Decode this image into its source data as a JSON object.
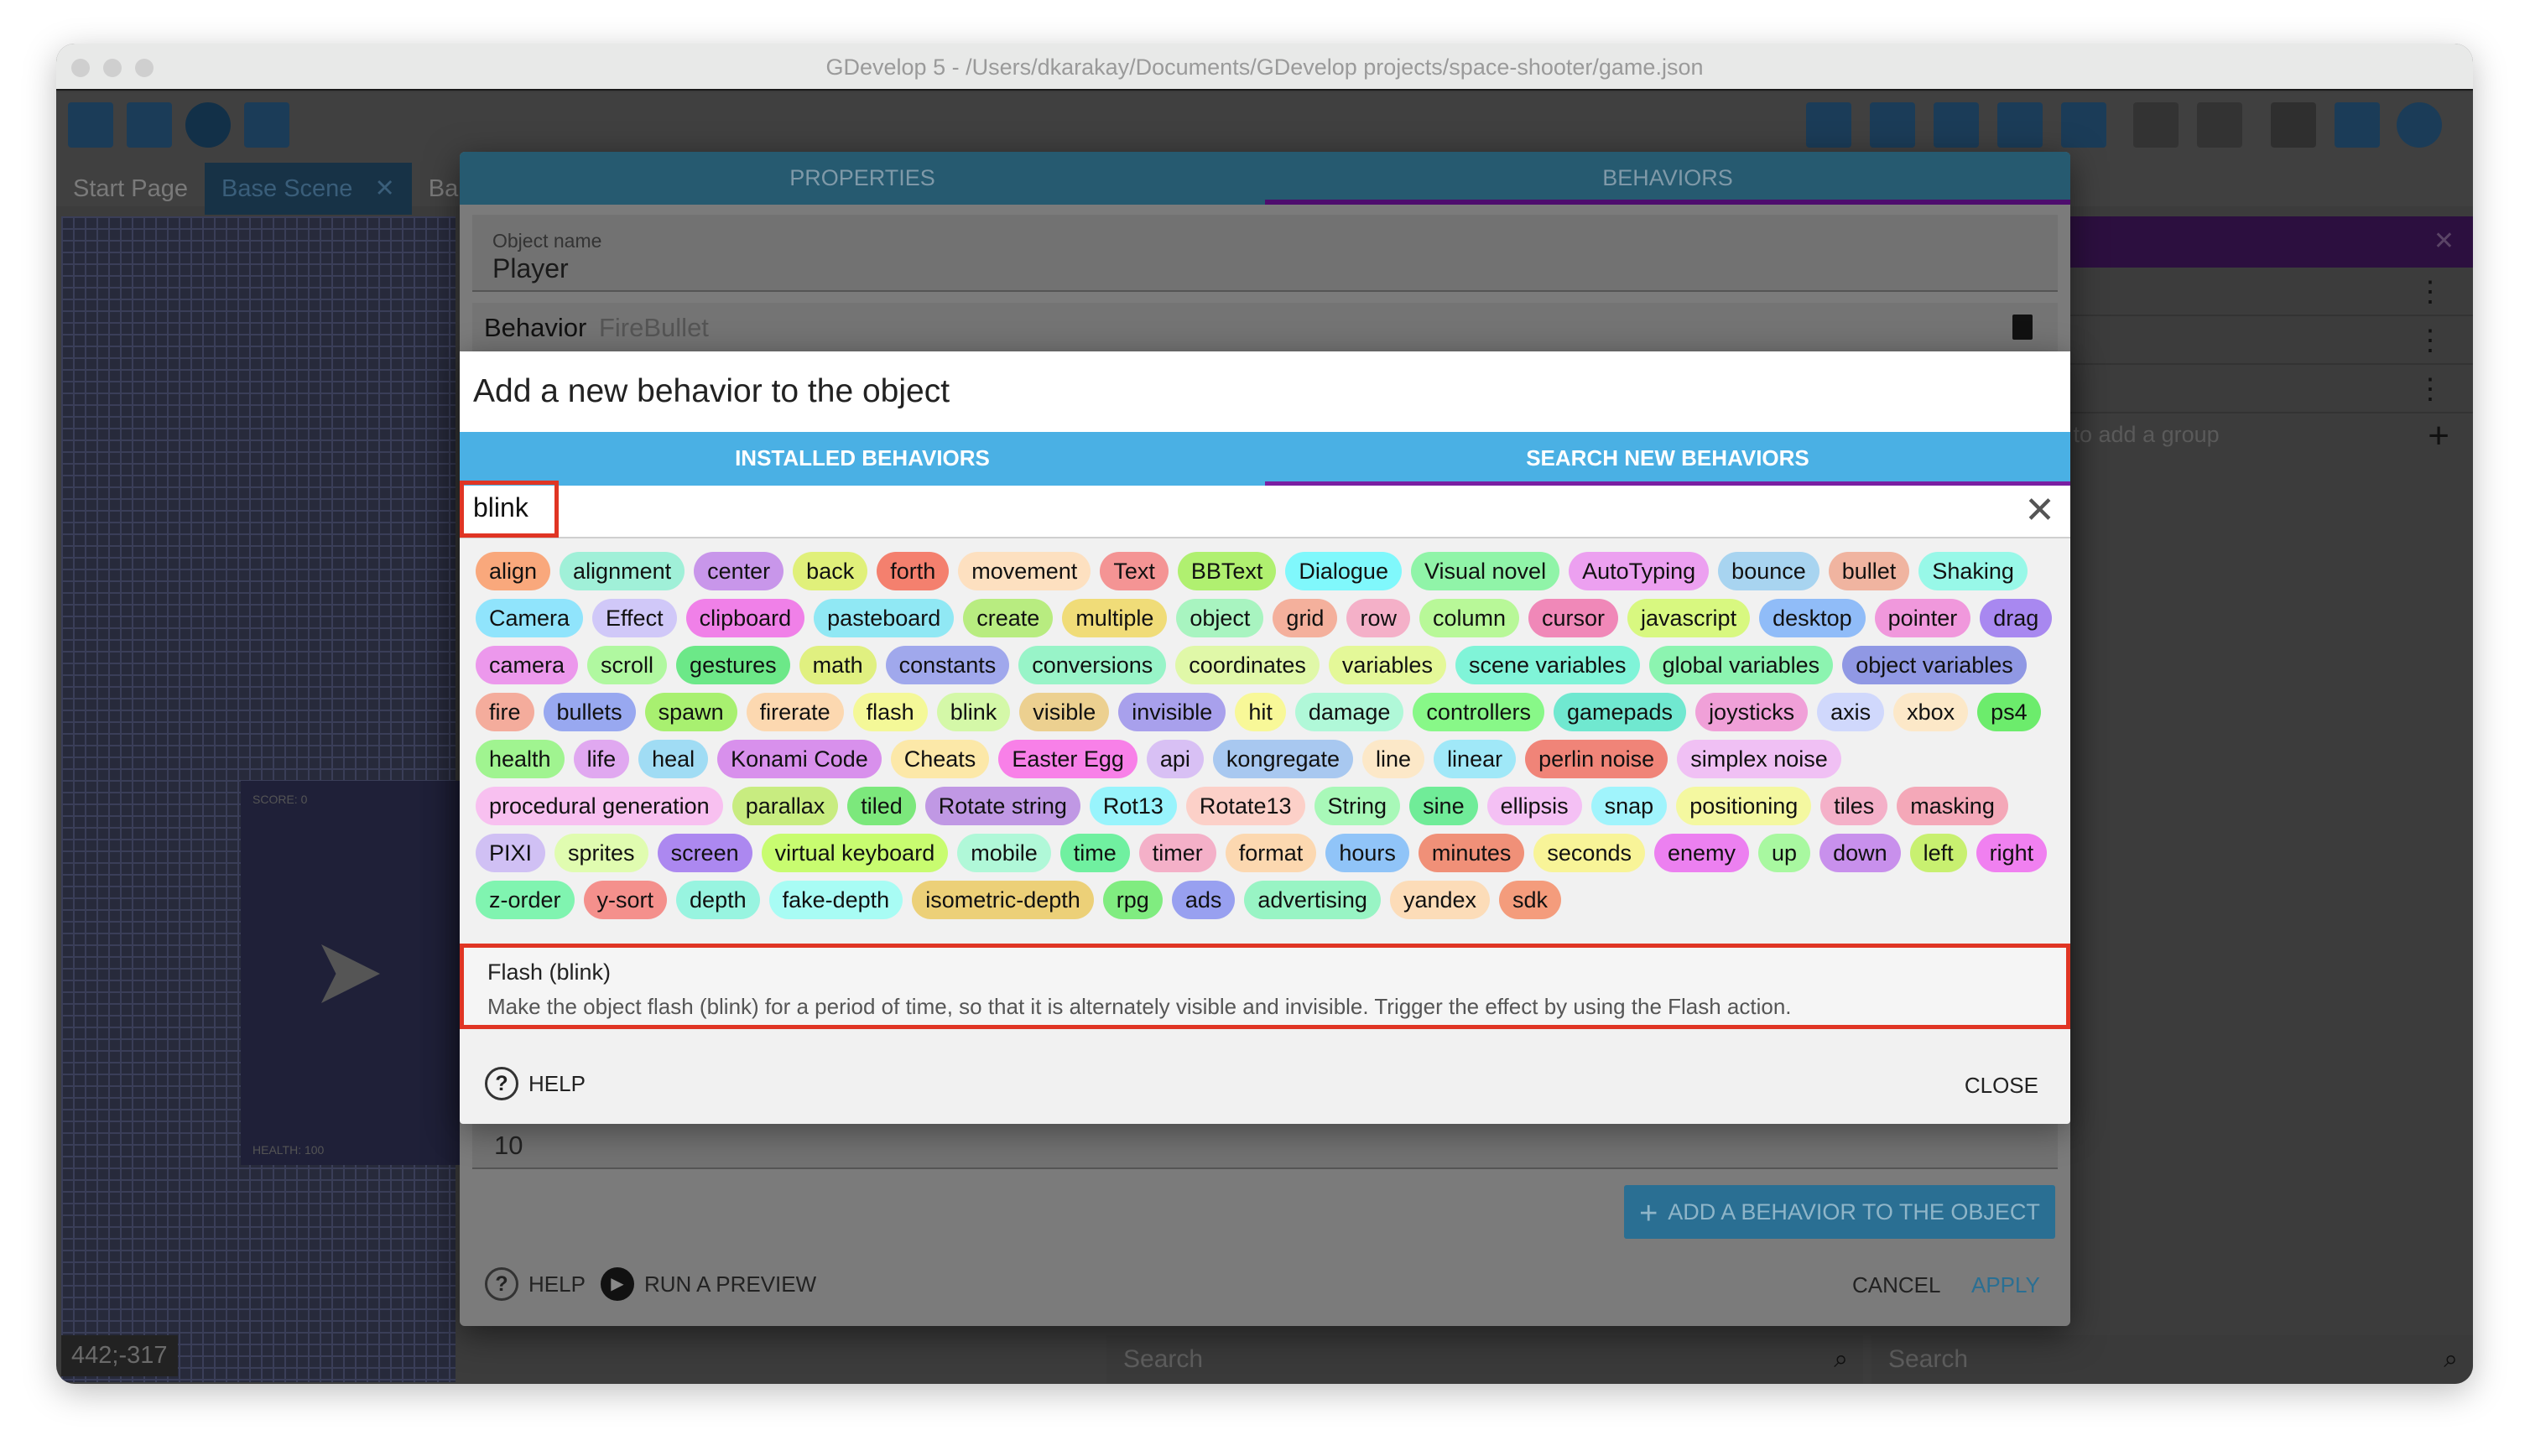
{
  "window": {
    "title": "GDevelop 5 - /Users/dkarakay/Documents/GDevelop projects/space-shooter/game.json"
  },
  "editor": {
    "tabs": [
      "Start Page",
      "Base Scene",
      "Ba"
    ],
    "tab_close": "✕",
    "status": "442;-317",
    "right_panel_hint": "ck to add a group",
    "right_panel_add": "+",
    "right_panel_close": "✕",
    "kebab": "⋮",
    "search_placeholder_1": "Search",
    "search_placeholder_2": "Search",
    "preview_score": "SCORE: 0",
    "preview_health": "HEALTH: 100"
  },
  "outer_dialog": {
    "tabs": [
      "PROPERTIES",
      "BEHAVIORS"
    ],
    "active_tab": 1,
    "object_name_label": "Object name",
    "object_name": "Player",
    "behavior_label": "Behavior",
    "behavior_name": "FireBullet",
    "value_field": "10",
    "add_behavior": "ADD A BEHAVIOR TO THE OBJECT",
    "help": "HELP",
    "run_preview": "RUN A PREVIEW",
    "cancel": "CANCEL",
    "apply": "APPLY"
  },
  "inner_dialog": {
    "title": "Add a new behavior to the object",
    "tabs": [
      "INSTALLED BEHAVIORS",
      "SEARCH NEW BEHAVIORS"
    ],
    "active_tab": 1,
    "search_value": "blink",
    "tags": [
      [
        "align",
        "#f9a87c"
      ],
      [
        "alignment",
        "#a0f0d8"
      ],
      [
        "center",
        "#c896ea"
      ],
      [
        "back",
        "#e0f07a"
      ],
      [
        "forth",
        "#f4806e"
      ],
      [
        "movement",
        "#fde0c0"
      ],
      [
        "Text",
        "#f49494"
      ],
      [
        "BBText",
        "#b0f070"
      ],
      [
        "Dialogue",
        "#80f8fc"
      ],
      [
        "Visual novel",
        "#90f4a8"
      ],
      [
        "AutoTyping",
        "#eca0f0"
      ],
      [
        "bounce",
        "#a8d4f0"
      ],
      [
        "bullet",
        "#f0b4a0"
      ],
      [
        "Shaking",
        "#98f8e8"
      ],
      [
        "Camera",
        "#90e4fc"
      ],
      [
        "Effect",
        "#d0c8f8"
      ],
      [
        "clipboard",
        "#f080e8"
      ],
      [
        "pasteboard",
        "#90e8f4"
      ],
      [
        "create",
        "#b8ec80"
      ],
      [
        "multiple",
        "#f0dc78"
      ],
      [
        "object",
        "#a8f4c0"
      ],
      [
        "grid",
        "#f4b09c"
      ],
      [
        "row",
        "#f4b0c8"
      ],
      [
        "column",
        "#b8f898"
      ],
      [
        "cursor",
        "#f088b8"
      ],
      [
        "javascript",
        "#d8f880"
      ],
      [
        "desktop",
        "#90bcf8"
      ],
      [
        "pointer",
        "#f098dc"
      ],
      [
        "drag",
        "#a888f0"
      ],
      [
        "camera",
        "#ec98ec"
      ],
      [
        "scroll",
        "#b0f8a0"
      ],
      [
        "gestures",
        "#6ce888"
      ],
      [
        "math",
        "#e0f080"
      ],
      [
        "constants",
        "#a0a8ec"
      ],
      [
        "conversions",
        "#98f4c8"
      ],
      [
        "coordinates",
        "#e0f8a8"
      ],
      [
        "variables",
        "#e4f898"
      ],
      [
        "scene variables",
        "#80f4d8"
      ],
      [
        "global variables",
        "#8cf4b0"
      ],
      [
        "object variables",
        "#9098e4"
      ],
      [
        "fire",
        "#f4ac9c"
      ],
      [
        "bullets",
        "#98a8f0"
      ],
      [
        "spawn",
        "#a8f070"
      ],
      [
        "firerate",
        "#fcd8b0"
      ],
      [
        "flash",
        "#f4f898"
      ],
      [
        "blink",
        "#d4f8a8"
      ],
      [
        "visible",
        "#ecd090"
      ],
      [
        "invisible",
        "#a8a0ec"
      ],
      [
        "hit",
        "#f8f898"
      ],
      [
        "damage",
        "#b0f8d8"
      ],
      [
        "controllers",
        "#88f888"
      ],
      [
        "gamepads",
        "#70e8d0"
      ],
      [
        "joysticks",
        "#f0a0d8"
      ],
      [
        "axis",
        "#d0d8fc"
      ],
      [
        "xbox",
        "#fce8c8"
      ],
      [
        "ps4",
        "#6cec6c"
      ],
      [
        "health",
        "#a0f490"
      ],
      [
        "life",
        "#e0a8f0"
      ],
      [
        "heal",
        "#a0dcf4"
      ],
      [
        "Konami Code",
        "#d890ec"
      ],
      [
        "Cheats",
        "#fce8a8"
      ],
      [
        "Easter Egg",
        "#f880e8"
      ],
      [
        "api",
        "#d8c0f4"
      ],
      [
        "kongregate",
        "#a8c8f0"
      ],
      [
        "line",
        "#fce8c8"
      ],
      [
        "linear",
        "#a0e8f8"
      ],
      [
        "perlin noise",
        "#f08478"
      ],
      [
        "simplex noise",
        "#f0c0f4"
      ],
      [
        "procedural generation",
        "#f8c0f0"
      ],
      [
        "parallax",
        "#c8ec80"
      ],
      [
        "tiled",
        "#7ce87c"
      ],
      [
        "Rotate string",
        "#c098e4"
      ],
      [
        "Rot13",
        "#98f4fc"
      ],
      [
        "Rotate13",
        "#fcd0c8"
      ],
      [
        "String",
        "#a8f8b8"
      ],
      [
        "sine",
        "#70ec98"
      ],
      [
        "ellipsis",
        "#f4c0f4"
      ],
      [
        "snap",
        "#a0f4fc"
      ],
      [
        "positioning",
        "#f4f8a0"
      ],
      [
        "tiles",
        "#f4b0c8"
      ],
      [
        "masking",
        "#f4a8b8"
      ],
      [
        "PIXI",
        "#d0c0f4"
      ],
      [
        "sprites",
        "#e0fcb0"
      ],
      [
        "screen",
        "#ac88f0"
      ],
      [
        "virtual keyboard",
        "#c8fc70"
      ],
      [
        "mobile",
        "#b0f8d8"
      ],
      [
        "time",
        "#70f0a0"
      ],
      [
        "timer",
        "#f4b0c8"
      ],
      [
        "format",
        "#fcd8b0"
      ],
      [
        "hours",
        "#90c4f8"
      ],
      [
        "minutes",
        "#f09078"
      ],
      [
        "seconds",
        "#f8f498"
      ],
      [
        "enemy",
        "#ec80f0"
      ],
      [
        "up",
        "#a8f8a0"
      ],
      [
        "down",
        "#c890ec"
      ],
      [
        "left",
        "#c8f070"
      ],
      [
        "right",
        "#f080f0"
      ],
      [
        "z-order",
        "#80f4b0"
      ],
      [
        "y-sort",
        "#f4908c"
      ],
      [
        "depth",
        "#98f4e0"
      ],
      [
        "fake-depth",
        "#a8fcf4"
      ],
      [
        "isometric-depth",
        "#ecd078"
      ],
      [
        "rpg",
        "#80ec80"
      ],
      [
        "ads",
        "#98a0f0"
      ],
      [
        "advertising",
        "#98f4c4"
      ],
      [
        "yandex",
        "#fcdcb8"
      ],
      [
        "sdk",
        "#f49c7c"
      ]
    ],
    "result": {
      "title": "Flash (blink)",
      "description": "Make the object flash (blink) for a period of time, so that it is alternately visible and invisible. Trigger the effect by using the Flash action."
    },
    "help": "HELP",
    "close": "CLOSE"
  },
  "colors": {
    "accent": "#4ab0e4",
    "active_tab_underline": "#7a1fa2",
    "highlight_border": "#e03524"
  }
}
